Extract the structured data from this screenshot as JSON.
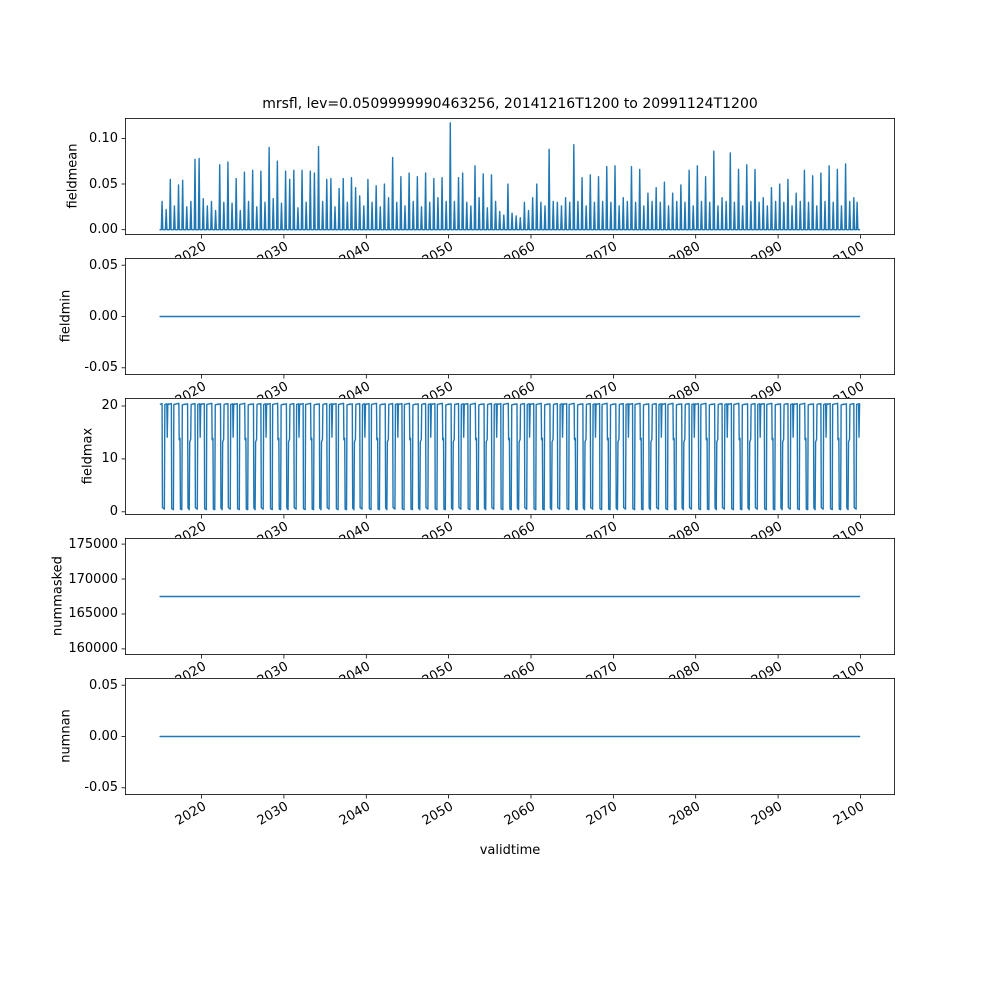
{
  "figure": {
    "title": "mrsfl, lev=0.0509999990463256, 20141216T1200 to 20991124T1200",
    "xlabel": "validtime",
    "line_color": "#1f77b4",
    "background_color": "#ffffff",
    "axes_edge_color": "#000000"
  },
  "x_axis": {
    "label": "validtime",
    "xlim": [
      2010.7,
      2104.2
    ],
    "ticks": [
      2020,
      2030,
      2040,
      2050,
      2060,
      2070,
      2080,
      2090,
      2100
    ],
    "tick_labels": [
      "2020",
      "2030",
      "2040",
      "2050",
      "2060",
      "2070",
      "2080",
      "2090",
      "2100"
    ],
    "data_start": 2014.96,
    "data_end": 2099.9
  },
  "chart_data": [
    {
      "type": "line",
      "name": "fieldmean",
      "ylabel": "fieldmean",
      "ylim": [
        -0.0058,
        0.1223
      ],
      "yticks": [
        0.0,
        0.05,
        0.1
      ],
      "ytick_labels": [
        "0.00",
        "0.05",
        "0.10"
      ],
      "series": "spikes",
      "baseline": 0.0,
      "spike_halfwidth": 0.09,
      "spikes": [
        [
          2015.2,
          0.031
        ],
        [
          2015.7,
          0.022
        ],
        [
          2016.2,
          0.055
        ],
        [
          2016.7,
          0.026
        ],
        [
          2017.2,
          0.049
        ],
        [
          2017.7,
          0.054
        ],
        [
          2018.2,
          0.025
        ],
        [
          2018.7,
          0.031
        ],
        [
          2019.2,
          0.077
        ],
        [
          2019.7,
          0.078
        ],
        [
          2020.2,
          0.034
        ],
        [
          2020.7,
          0.026
        ],
        [
          2021.2,
          0.031
        ],
        [
          2021.7,
          0.021
        ],
        [
          2022.2,
          0.071
        ],
        [
          2022.7,
          0.03
        ],
        [
          2023.2,
          0.074
        ],
        [
          2023.7,
          0.029
        ],
        [
          2024.2,
          0.056
        ],
        [
          2024.7,
          0.021
        ],
        [
          2025.2,
          0.063
        ],
        [
          2025.7,
          0.031
        ],
        [
          2026.2,
          0.065
        ],
        [
          2026.7,
          0.025
        ],
        [
          2027.2,
          0.064
        ],
        [
          2027.7,
          0.03
        ],
        [
          2028.2,
          0.09
        ],
        [
          2028.7,
          0.034
        ],
        [
          2029.2,
          0.075
        ],
        [
          2029.7,
          0.029
        ],
        [
          2030.2,
          0.064
        ],
        [
          2030.7,
          0.055
        ],
        [
          2031.2,
          0.065
        ],
        [
          2031.7,
          0.024
        ],
        [
          2032.2,
          0.065
        ],
        [
          2032.7,
          0.03
        ],
        [
          2033.2,
          0.064
        ],
        [
          2033.7,
          0.062
        ],
        [
          2034.2,
          0.091
        ],
        [
          2034.7,
          0.031
        ],
        [
          2035.2,
          0.055
        ],
        [
          2035.7,
          0.056
        ],
        [
          2036.2,
          0.025
        ],
        [
          2036.7,
          0.045
        ],
        [
          2037.2,
          0.056
        ],
        [
          2037.7,
          0.03
        ],
        [
          2038.2,
          0.057
        ],
        [
          2038.7,
          0.046
        ],
        [
          2039.2,
          0.037
        ],
        [
          2039.7,
          0.026
        ],
        [
          2040.2,
          0.055
        ],
        [
          2040.7,
          0.03
        ],
        [
          2041.2,
          0.048
        ],
        [
          2041.7,
          0.025
        ],
        [
          2042.2,
          0.05
        ],
        [
          2042.7,
          0.035
        ],
        [
          2043.2,
          0.079
        ],
        [
          2043.7,
          0.03
        ],
        [
          2044.2,
          0.058
        ],
        [
          2044.7,
          0.026
        ],
        [
          2045.2,
          0.062
        ],
        [
          2045.7,
          0.031
        ],
        [
          2046.2,
          0.058
        ],
        [
          2046.7,
          0.025
        ],
        [
          2047.2,
          0.062
        ],
        [
          2047.7,
          0.03
        ],
        [
          2048.2,
          0.056
        ],
        [
          2048.7,
          0.035
        ],
        [
          2049.2,
          0.057
        ],
        [
          2049.7,
          0.031
        ],
        [
          2050.2,
          0.117
        ],
        [
          2050.7,
          0.031
        ],
        [
          2051.2,
          0.057
        ],
        [
          2051.7,
          0.062
        ],
        [
          2052.2,
          0.03
        ],
        [
          2052.7,
          0.026
        ],
        [
          2053.2,
          0.07
        ],
        [
          2053.7,
          0.035
        ],
        [
          2054.2,
          0.061
        ],
        [
          2054.7,
          0.024
        ],
        [
          2055.2,
          0.06
        ],
        [
          2055.7,
          0.031
        ],
        [
          2056.2,
          0.02
        ],
        [
          2056.7,
          0.016
        ],
        [
          2057.2,
          0.05
        ],
        [
          2057.7,
          0.018
        ],
        [
          2058.2,
          0.015
        ],
        [
          2058.7,
          0.013
        ],
        [
          2059.2,
          0.03
        ],
        [
          2059.7,
          0.021
        ],
        [
          2060.2,
          0.035
        ],
        [
          2060.7,
          0.05
        ],
        [
          2061.2,
          0.03
        ],
        [
          2061.7,
          0.026
        ],
        [
          2062.2,
          0.088
        ],
        [
          2062.7,
          0.031
        ],
        [
          2063.2,
          0.03
        ],
        [
          2063.7,
          0.026
        ],
        [
          2064.2,
          0.035
        ],
        [
          2064.7,
          0.03
        ],
        [
          2065.2,
          0.093
        ],
        [
          2065.7,
          0.031
        ],
        [
          2066.2,
          0.057
        ],
        [
          2066.7,
          0.026
        ],
        [
          2067.2,
          0.06
        ],
        [
          2067.7,
          0.03
        ],
        [
          2068.2,
          0.058
        ],
        [
          2068.7,
          0.031
        ],
        [
          2069.2,
          0.069
        ],
        [
          2069.7,
          0.03
        ],
        [
          2070.2,
          0.07
        ],
        [
          2070.7,
          0.026
        ],
        [
          2071.2,
          0.035
        ],
        [
          2071.7,
          0.031
        ],
        [
          2072.2,
          0.069
        ],
        [
          2072.7,
          0.03
        ],
        [
          2073.2,
          0.066
        ],
        [
          2073.7,
          0.026
        ],
        [
          2074.2,
          0.04
        ],
        [
          2074.7,
          0.031
        ],
        [
          2075.2,
          0.046
        ],
        [
          2075.7,
          0.03
        ],
        [
          2076.2,
          0.052
        ],
        [
          2076.7,
          0.026
        ],
        [
          2077.2,
          0.04
        ],
        [
          2077.7,
          0.031
        ],
        [
          2078.2,
          0.049
        ],
        [
          2078.7,
          0.03
        ],
        [
          2079.2,
          0.065
        ],
        [
          2079.7,
          0.026
        ],
        [
          2080.2,
          0.07
        ],
        [
          2080.7,
          0.031
        ],
        [
          2081.2,
          0.058
        ],
        [
          2081.7,
          0.03
        ],
        [
          2082.2,
          0.086
        ],
        [
          2082.7,
          0.026
        ],
        [
          2083.2,
          0.035
        ],
        [
          2083.7,
          0.031
        ],
        [
          2084.2,
          0.084
        ],
        [
          2084.7,
          0.03
        ],
        [
          2085.2,
          0.066
        ],
        [
          2085.7,
          0.026
        ],
        [
          2086.2,
          0.071
        ],
        [
          2086.7,
          0.031
        ],
        [
          2087.2,
          0.066
        ],
        [
          2087.7,
          0.03
        ],
        [
          2088.2,
          0.035
        ],
        [
          2088.7,
          0.026
        ],
        [
          2089.2,
          0.046
        ],
        [
          2089.7,
          0.031
        ],
        [
          2090.2,
          0.05
        ],
        [
          2090.7,
          0.03
        ],
        [
          2091.2,
          0.055
        ],
        [
          2091.7,
          0.026
        ],
        [
          2092.2,
          0.04
        ],
        [
          2092.7,
          0.031
        ],
        [
          2093.2,
          0.065
        ],
        [
          2093.7,
          0.03
        ],
        [
          2094.2,
          0.059
        ],
        [
          2094.7,
          0.026
        ],
        [
          2095.2,
          0.062
        ],
        [
          2095.7,
          0.031
        ],
        [
          2096.2,
          0.07
        ],
        [
          2096.7,
          0.03
        ],
        [
          2097.2,
          0.066
        ],
        [
          2097.7,
          0.026
        ],
        [
          2098.2,
          0.072
        ],
        [
          2098.7,
          0.031
        ],
        [
          2099.2,
          0.035
        ],
        [
          2099.6,
          0.03
        ]
      ]
    },
    {
      "type": "line",
      "name": "fieldmin",
      "ylabel": "fieldmin",
      "ylim": [
        -0.057,
        0.057
      ],
      "yticks": [
        -0.05,
        0.0,
        0.05
      ],
      "ytick_labels": [
        "-0.05",
        "0.00",
        "0.05"
      ],
      "series": "constant",
      "value": 0.0
    },
    {
      "type": "line",
      "name": "fieldmax",
      "ylabel": "fieldmax",
      "ylim": [
        -0.605,
        21.505
      ],
      "yticks": [
        0,
        10,
        20
      ],
      "ytick_labels": [
        "0",
        "10",
        "20"
      ],
      "series": "cycles",
      "year_start": 2015,
      "year_end": 2100,
      "cycle_profiles": [
        [
          [
            0.0,
            20.3
          ],
          [
            0.33,
            20.45
          ],
          [
            0.37,
            0.6
          ],
          [
            0.58,
            0.4
          ],
          [
            0.63,
            20.3
          ],
          [
            1.0,
            20.4
          ]
        ],
        [
          [
            0.0,
            20.4
          ],
          [
            0.24,
            20.5
          ],
          [
            0.28,
            13.6
          ],
          [
            0.38,
            13.9
          ],
          [
            0.43,
            0.5
          ],
          [
            0.6,
            0.4
          ],
          [
            0.66,
            20.2
          ],
          [
            1.0,
            20.35
          ]
        ],
        [
          [
            0.0,
            20.3
          ],
          [
            0.3,
            20.4
          ],
          [
            0.35,
            0.7
          ],
          [
            0.5,
            0.4
          ],
          [
            0.56,
            13.2
          ],
          [
            0.68,
            13.7
          ],
          [
            0.73,
            20.3
          ],
          [
            1.0,
            20.4
          ]
        ],
        [
          [
            0.0,
            20.35
          ],
          [
            0.2,
            20.45
          ],
          [
            0.25,
            0.8
          ],
          [
            0.48,
            0.5
          ],
          [
            0.54,
            20.3
          ],
          [
            0.78,
            20.4
          ],
          [
            0.83,
            14.1
          ],
          [
            0.9,
            20.3
          ],
          [
            1.0,
            20.4
          ]
        ]
      ]
    },
    {
      "type": "line",
      "name": "nummasked",
      "ylabel": "nummasked",
      "ylim": [
        159125,
        175875
      ],
      "yticks": [
        160000,
        165000,
        170000,
        175000
      ],
      "ytick_labels": [
        "160000",
        "165000",
        "170000",
        "175000"
      ],
      "series": "constant",
      "value": 167500
    },
    {
      "type": "line",
      "name": "numnan",
      "ylabel": "numnan",
      "ylim": [
        -0.057,
        0.057
      ],
      "yticks": [
        -0.05,
        0.0,
        0.05
      ],
      "ytick_labels": [
        "-0.05",
        "0.00",
        "0.05"
      ],
      "series": "constant",
      "value": 0.0
    }
  ]
}
